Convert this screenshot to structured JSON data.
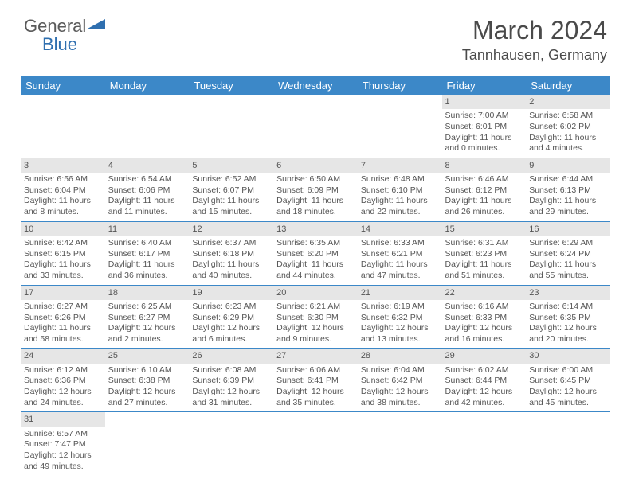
{
  "logo": {
    "general": "General",
    "blue": "Blue"
  },
  "title": "March 2024",
  "location": "Tannhausen, Germany",
  "header_bg": "#3c88c8",
  "day_header_bg": "#e6e6e6",
  "weekdays": [
    "Sunday",
    "Monday",
    "Tuesday",
    "Wednesday",
    "Thursday",
    "Friday",
    "Saturday"
  ],
  "weeks": [
    [
      null,
      null,
      null,
      null,
      null,
      {
        "n": "1",
        "sr": "Sunrise: 7:00 AM",
        "ss": "Sunset: 6:01 PM",
        "d1": "Daylight: 11 hours",
        "d2": "and 0 minutes."
      },
      {
        "n": "2",
        "sr": "Sunrise: 6:58 AM",
        "ss": "Sunset: 6:02 PM",
        "d1": "Daylight: 11 hours",
        "d2": "and 4 minutes."
      }
    ],
    [
      {
        "n": "3",
        "sr": "Sunrise: 6:56 AM",
        "ss": "Sunset: 6:04 PM",
        "d1": "Daylight: 11 hours",
        "d2": "and 8 minutes."
      },
      {
        "n": "4",
        "sr": "Sunrise: 6:54 AM",
        "ss": "Sunset: 6:06 PM",
        "d1": "Daylight: 11 hours",
        "d2": "and 11 minutes."
      },
      {
        "n": "5",
        "sr": "Sunrise: 6:52 AM",
        "ss": "Sunset: 6:07 PM",
        "d1": "Daylight: 11 hours",
        "d2": "and 15 minutes."
      },
      {
        "n": "6",
        "sr": "Sunrise: 6:50 AM",
        "ss": "Sunset: 6:09 PM",
        "d1": "Daylight: 11 hours",
        "d2": "and 18 minutes."
      },
      {
        "n": "7",
        "sr": "Sunrise: 6:48 AM",
        "ss": "Sunset: 6:10 PM",
        "d1": "Daylight: 11 hours",
        "d2": "and 22 minutes."
      },
      {
        "n": "8",
        "sr": "Sunrise: 6:46 AM",
        "ss": "Sunset: 6:12 PM",
        "d1": "Daylight: 11 hours",
        "d2": "and 26 minutes."
      },
      {
        "n": "9",
        "sr": "Sunrise: 6:44 AM",
        "ss": "Sunset: 6:13 PM",
        "d1": "Daylight: 11 hours",
        "d2": "and 29 minutes."
      }
    ],
    [
      {
        "n": "10",
        "sr": "Sunrise: 6:42 AM",
        "ss": "Sunset: 6:15 PM",
        "d1": "Daylight: 11 hours",
        "d2": "and 33 minutes."
      },
      {
        "n": "11",
        "sr": "Sunrise: 6:40 AM",
        "ss": "Sunset: 6:17 PM",
        "d1": "Daylight: 11 hours",
        "d2": "and 36 minutes."
      },
      {
        "n": "12",
        "sr": "Sunrise: 6:37 AM",
        "ss": "Sunset: 6:18 PM",
        "d1": "Daylight: 11 hours",
        "d2": "and 40 minutes."
      },
      {
        "n": "13",
        "sr": "Sunrise: 6:35 AM",
        "ss": "Sunset: 6:20 PM",
        "d1": "Daylight: 11 hours",
        "d2": "and 44 minutes."
      },
      {
        "n": "14",
        "sr": "Sunrise: 6:33 AM",
        "ss": "Sunset: 6:21 PM",
        "d1": "Daylight: 11 hours",
        "d2": "and 47 minutes."
      },
      {
        "n": "15",
        "sr": "Sunrise: 6:31 AM",
        "ss": "Sunset: 6:23 PM",
        "d1": "Daylight: 11 hours",
        "d2": "and 51 minutes."
      },
      {
        "n": "16",
        "sr": "Sunrise: 6:29 AM",
        "ss": "Sunset: 6:24 PM",
        "d1": "Daylight: 11 hours",
        "d2": "and 55 minutes."
      }
    ],
    [
      {
        "n": "17",
        "sr": "Sunrise: 6:27 AM",
        "ss": "Sunset: 6:26 PM",
        "d1": "Daylight: 11 hours",
        "d2": "and 58 minutes."
      },
      {
        "n": "18",
        "sr": "Sunrise: 6:25 AM",
        "ss": "Sunset: 6:27 PM",
        "d1": "Daylight: 12 hours",
        "d2": "and 2 minutes."
      },
      {
        "n": "19",
        "sr": "Sunrise: 6:23 AM",
        "ss": "Sunset: 6:29 PM",
        "d1": "Daylight: 12 hours",
        "d2": "and 6 minutes."
      },
      {
        "n": "20",
        "sr": "Sunrise: 6:21 AM",
        "ss": "Sunset: 6:30 PM",
        "d1": "Daylight: 12 hours",
        "d2": "and 9 minutes."
      },
      {
        "n": "21",
        "sr": "Sunrise: 6:19 AM",
        "ss": "Sunset: 6:32 PM",
        "d1": "Daylight: 12 hours",
        "d2": "and 13 minutes."
      },
      {
        "n": "22",
        "sr": "Sunrise: 6:16 AM",
        "ss": "Sunset: 6:33 PM",
        "d1": "Daylight: 12 hours",
        "d2": "and 16 minutes."
      },
      {
        "n": "23",
        "sr": "Sunrise: 6:14 AM",
        "ss": "Sunset: 6:35 PM",
        "d1": "Daylight: 12 hours",
        "d2": "and 20 minutes."
      }
    ],
    [
      {
        "n": "24",
        "sr": "Sunrise: 6:12 AM",
        "ss": "Sunset: 6:36 PM",
        "d1": "Daylight: 12 hours",
        "d2": "and 24 minutes."
      },
      {
        "n": "25",
        "sr": "Sunrise: 6:10 AM",
        "ss": "Sunset: 6:38 PM",
        "d1": "Daylight: 12 hours",
        "d2": "and 27 minutes."
      },
      {
        "n": "26",
        "sr": "Sunrise: 6:08 AM",
        "ss": "Sunset: 6:39 PM",
        "d1": "Daylight: 12 hours",
        "d2": "and 31 minutes."
      },
      {
        "n": "27",
        "sr": "Sunrise: 6:06 AM",
        "ss": "Sunset: 6:41 PM",
        "d1": "Daylight: 12 hours",
        "d2": "and 35 minutes."
      },
      {
        "n": "28",
        "sr": "Sunrise: 6:04 AM",
        "ss": "Sunset: 6:42 PM",
        "d1": "Daylight: 12 hours",
        "d2": "and 38 minutes."
      },
      {
        "n": "29",
        "sr": "Sunrise: 6:02 AM",
        "ss": "Sunset: 6:44 PM",
        "d1": "Daylight: 12 hours",
        "d2": "and 42 minutes."
      },
      {
        "n": "30",
        "sr": "Sunrise: 6:00 AM",
        "ss": "Sunset: 6:45 PM",
        "d1": "Daylight: 12 hours",
        "d2": "and 45 minutes."
      }
    ],
    [
      {
        "n": "31",
        "sr": "Sunrise: 6:57 AM",
        "ss": "Sunset: 7:47 PM",
        "d1": "Daylight: 12 hours",
        "d2": "and 49 minutes."
      },
      null,
      null,
      null,
      null,
      null,
      null
    ]
  ]
}
